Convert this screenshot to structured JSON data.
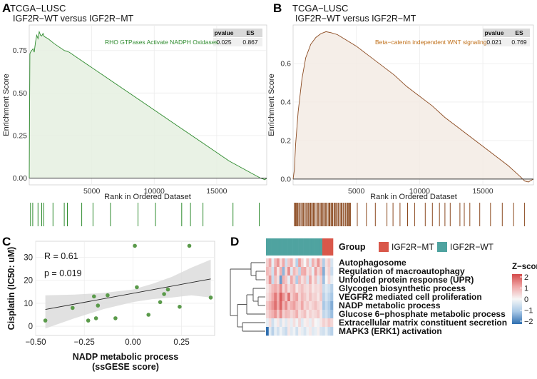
{
  "figure_panels": [
    "A",
    "B",
    "C",
    "D"
  ],
  "chart_data": [
    {
      "panel": "A",
      "type": "line",
      "subtype": "gsea-enrichment",
      "title": "TCGA−LUSC",
      "subtitle": "IGF2R−WT versus IGF2R−MT",
      "xlabel": "Rank in Ordered Dataset",
      "ylabel": "Enrichment Score",
      "xlim": [
        0,
        19000
      ],
      "ylim": [
        -0.04,
        0.9
      ],
      "xticks": [
        5000,
        10000,
        15000
      ],
      "yticks": [
        0.0,
        0.25,
        0.5,
        0.75
      ],
      "ytick_labels": [
        "0.00",
        "0.25",
        "0.50",
        "0.75"
      ],
      "color": "#2e8b2e",
      "fill": "#e5f0e1",
      "gene_set": "RHO GTPases Activate NADPH Oxidases",
      "stats_headers": [
        "pvalue",
        "ES"
      ],
      "stats_values": [
        "0.025",
        "0.867"
      ],
      "x": [
        0,
        50,
        100,
        200,
        300,
        400,
        500,
        600,
        700,
        800,
        900,
        1000,
        1100,
        1200,
        1500,
        2000,
        2800,
        3200,
        4000,
        6000,
        8000,
        10000,
        12000,
        14000,
        16000,
        18500,
        18700,
        18850,
        19000
      ],
      "y": [
        0,
        0.73,
        0.74,
        0.75,
        0.76,
        0.74,
        0.8,
        0.84,
        0.82,
        0.86,
        0.84,
        0.835,
        0.85,
        0.832,
        0.82,
        0.79,
        0.75,
        0.74,
        0.7,
        0.6,
        0.5,
        0.4,
        0.3,
        0.2,
        0.1,
        0.0,
        -0.005,
        -0.01,
        0
      ],
      "hits": [
        100,
        280,
        700,
        1000,
        1150,
        1900,
        2800,
        3050,
        4200,
        5100,
        6500,
        8700,
        10100,
        12200,
        12900,
        13900,
        16300,
        18400
      ]
    },
    {
      "panel": "B",
      "type": "line",
      "subtype": "gsea-enrichment",
      "title": "TCGA−LUSC",
      "subtitle": "IGF2R−WT versus IGF2R−MT",
      "xlabel": "Rank in Ordered Dataset",
      "ylabel": "Enrichment Score",
      "xlim": [
        0,
        19000
      ],
      "ylim": [
        -0.03,
        0.8
      ],
      "xticks": [
        5000,
        10000,
        15000
      ],
      "yticks": [
        0.0,
        0.2,
        0.4,
        0.6
      ],
      "ytick_labels": [
        "0.0",
        "0.2",
        "0.4",
        "0.6"
      ],
      "color": "#8b4a20",
      "fill": "#f3ebe4",
      "gene_set": "Beta−catenin independent WNT signaling",
      "stats_headers": [
        "pvalue",
        "ES"
      ],
      "stats_values": [
        "0.021",
        "0.769"
      ],
      "x": [
        0,
        100,
        200,
        400,
        700,
        1000,
        1400,
        1800,
        2200,
        2600,
        3000,
        3500,
        4000,
        5000,
        6000,
        7000,
        8000,
        9000,
        10000,
        11000,
        12000,
        13000,
        14000,
        15000,
        16000,
        17000,
        17500,
        18000,
        18300,
        18600,
        19000
      ],
      "y": [
        0,
        0.05,
        0.18,
        0.35,
        0.52,
        0.63,
        0.7,
        0.735,
        0.755,
        0.765,
        0.76,
        0.75,
        0.73,
        0.69,
        0.64,
        0.59,
        0.54,
        0.48,
        0.43,
        0.38,
        0.32,
        0.27,
        0.22,
        0.17,
        0.12,
        0.07,
        0.04,
        0.01,
        -0.01,
        -0.015,
        0
      ]
    },
    {
      "panel": "C",
      "type": "scatter",
      "ylabel": "Cisplatin (IC50: uM)",
      "xlabel_line1": "NADP metabolic process",
      "xlabel_line2": "(ssGESE score)",
      "xlim": [
        -0.5,
        0.42
      ],
      "ylim": [
        -4,
        37
      ],
      "xticks": [
        -0.5,
        -0.25,
        0.0,
        0.25
      ],
      "xtick_labels": [
        "−0.50",
        "−0.25",
        "0.00",
        "0.25"
      ],
      "yticks": [
        0,
        10,
        20,
        30
      ],
      "yticks_labels": [
        "0",
        "10",
        "20",
        "30"
      ],
      "annotation_r": "R = 0.61",
      "annotation_p": "p = 0.019",
      "point_color": "#5a9a4a",
      "points": [
        {
          "x": -0.45,
          "y": 2.5
        },
        {
          "x": -0.31,
          "y": 8
        },
        {
          "x": -0.23,
          "y": 2.5
        },
        {
          "x": -0.2,
          "y": 13
        },
        {
          "x": -0.19,
          "y": 3.5
        },
        {
          "x": -0.18,
          "y": 9
        },
        {
          "x": -0.13,
          "y": 13.5
        },
        {
          "x": -0.09,
          "y": 3.5
        },
        {
          "x": 0.01,
          "y": 35
        },
        {
          "x": 0.02,
          "y": 17
        },
        {
          "x": 0.08,
          "y": 5
        },
        {
          "x": 0.14,
          "y": 10.5
        },
        {
          "x": 0.16,
          "y": 14
        },
        {
          "x": 0.18,
          "y": 16
        },
        {
          "x": 0.24,
          "y": 8.5
        },
        {
          "x": 0.29,
          "y": 35
        },
        {
          "x": 0.4,
          "y": 12.5
        }
      ],
      "regression": {
        "x": [
          -0.45,
          0.4
        ],
        "y": [
          7.3,
          20.6
        ]
      },
      "ci_band": {
        "x": [
          -0.45,
          -0.3,
          -0.15,
          0.0,
          0.1,
          0.2,
          0.3,
          0.4
        ],
        "upper": [
          13.5,
          13.8,
          14.5,
          16.0,
          18.5,
          21.5,
          25.5,
          29.0
        ],
        "lower": [
          -1.0,
          3.5,
          7.5,
          10.5,
          11.8,
          12.5,
          13.5,
          12.5
        ]
      }
    },
    {
      "panel": "D",
      "type": "heatmap",
      "group_title": "Group",
      "legend_groups": [
        {
          "label": "IGF2R−MT",
          "color": "#d9574a"
        },
        {
          "label": "IGF2R−WT",
          "color": "#4fa3a0"
        }
      ],
      "colorbar_title": "Z−score",
      "colorbar_ticks": [
        "2",
        "1",
        "0",
        "−1",
        "−2"
      ],
      "colorbar_colors": [
        "#d44a4a",
        "#f0a8a8",
        "#f7f7f7",
        "#a8c8e6",
        "#2f6fb0"
      ],
      "columns_groups": [
        "WT",
        "WT",
        "WT",
        "WT",
        "WT",
        "WT",
        "WT",
        "WT",
        "WT",
        "WT",
        "WT",
        "WT",
        "WT",
        "WT",
        "WT",
        "WT",
        "WT",
        "WT",
        "WT",
        "WT",
        "WT",
        "MT",
        "MT",
        "MT",
        "MT"
      ],
      "rows": [
        "Autophagosome",
        "Regulation of macroautophagy",
        "Unfolded protein response (UPR)",
        "Glycogen biosynthetic process",
        "VEGFR2 mediated cell proliferation",
        "NADP metabolic process",
        "Glucose 6−phosphate metabolic process",
        "Extracellular matrix constituent secretion",
        "MAPK3 (ERK1) activation"
      ],
      "z_matrix": [
        [
          0.5,
          1.0,
          -0.2,
          0.8,
          1.2,
          0.3,
          1.0,
          -0.5,
          0.6,
          0.9,
          0.2,
          -0.8,
          1.1,
          0.5,
          0.0,
          0.7,
          -0.3,
          0.9,
          0.4,
          1.2,
          0.5,
          -0.9,
          0.3,
          0.6,
          -0.4
        ],
        [
          0.8,
          0.6,
          -0.5,
          1.1,
          0.2,
          0.9,
          -1.2,
          0.4,
          1.3,
          -0.3,
          0.8,
          0.5,
          -0.7,
          0.9,
          1.0,
          0.3,
          0.6,
          -0.2,
          1.1,
          0.4,
          0.8,
          -1.3,
          0.2,
          0.5,
          -0.6
        ],
        [
          0.4,
          1.2,
          -0.6,
          0.7,
          0.3,
          -1.5,
          0.9,
          0.6,
          -0.2,
          1.0,
          0.5,
          -0.9,
          0.8,
          0.3,
          0.6,
          -0.4,
          1.0,
          0.2,
          0.7,
          -0.3,
          0.5,
          -1.1,
          0.0,
          0.4,
          -0.2
        ],
        [
          0.2,
          0.5,
          0.8,
          1.0,
          0.7,
          1.3,
          0.4,
          0.9,
          0.3,
          0.6,
          0.8,
          0.2,
          0.5,
          0.7,
          0.4,
          0.3,
          0.6,
          0.2,
          0.4,
          0.3,
          0.5,
          -0.6,
          -0.3,
          -0.5,
          -0.8
        ],
        [
          0.3,
          0.6,
          1.0,
          1.5,
          0.9,
          1.8,
          1.2,
          0.7,
          1.6,
          0.5,
          0.9,
          1.1,
          0.4,
          0.8,
          0.6,
          0.3,
          0.7,
          0.4,
          0.5,
          0.2,
          0.6,
          -0.8,
          -0.4,
          -0.7,
          -1.0
        ],
        [
          0.6,
          0.9,
          1.2,
          1.6,
          1.0,
          1.7,
          0.8,
          1.3,
          0.6,
          0.9,
          1.1,
          0.7,
          0.5,
          1.0,
          0.4,
          0.6,
          0.3,
          0.5,
          0.7,
          0.4,
          0.3,
          -1.0,
          -0.6,
          -0.9,
          -1.3
        ],
        [
          0.4,
          0.7,
          0.9,
          1.2,
          0.6,
          1.3,
          0.5,
          0.8,
          0.7,
          0.4,
          0.6,
          0.9,
          0.3,
          0.5,
          0.7,
          0.2,
          0.5,
          0.3,
          0.4,
          0.6,
          0.2,
          -0.7,
          -0.5,
          -0.8,
          -1.1
        ],
        [
          -0.2,
          0.3,
          -0.5,
          -0.1,
          0.2,
          -0.4,
          0.1,
          -0.3,
          0.2,
          -0.2,
          0.3,
          -0.1,
          0.4,
          -0.3,
          0.1,
          0.2,
          -0.2,
          0.3,
          0.0,
          -0.1,
          0.2,
          0.5,
          0.3,
          0.6,
          0.4
        ],
        [
          -2.0,
          -0.3,
          -0.8,
          -0.2,
          -0.5,
          -0.1,
          -0.4,
          -0.6,
          0.2,
          -0.3,
          -0.1,
          -0.5,
          0.1,
          -0.2,
          -0.4,
          -0.1,
          0.2,
          -0.3,
          -0.2,
          0.1,
          -0.4,
          -0.5,
          -0.2,
          -0.6,
          -0.8
        ]
      ]
    }
  ]
}
